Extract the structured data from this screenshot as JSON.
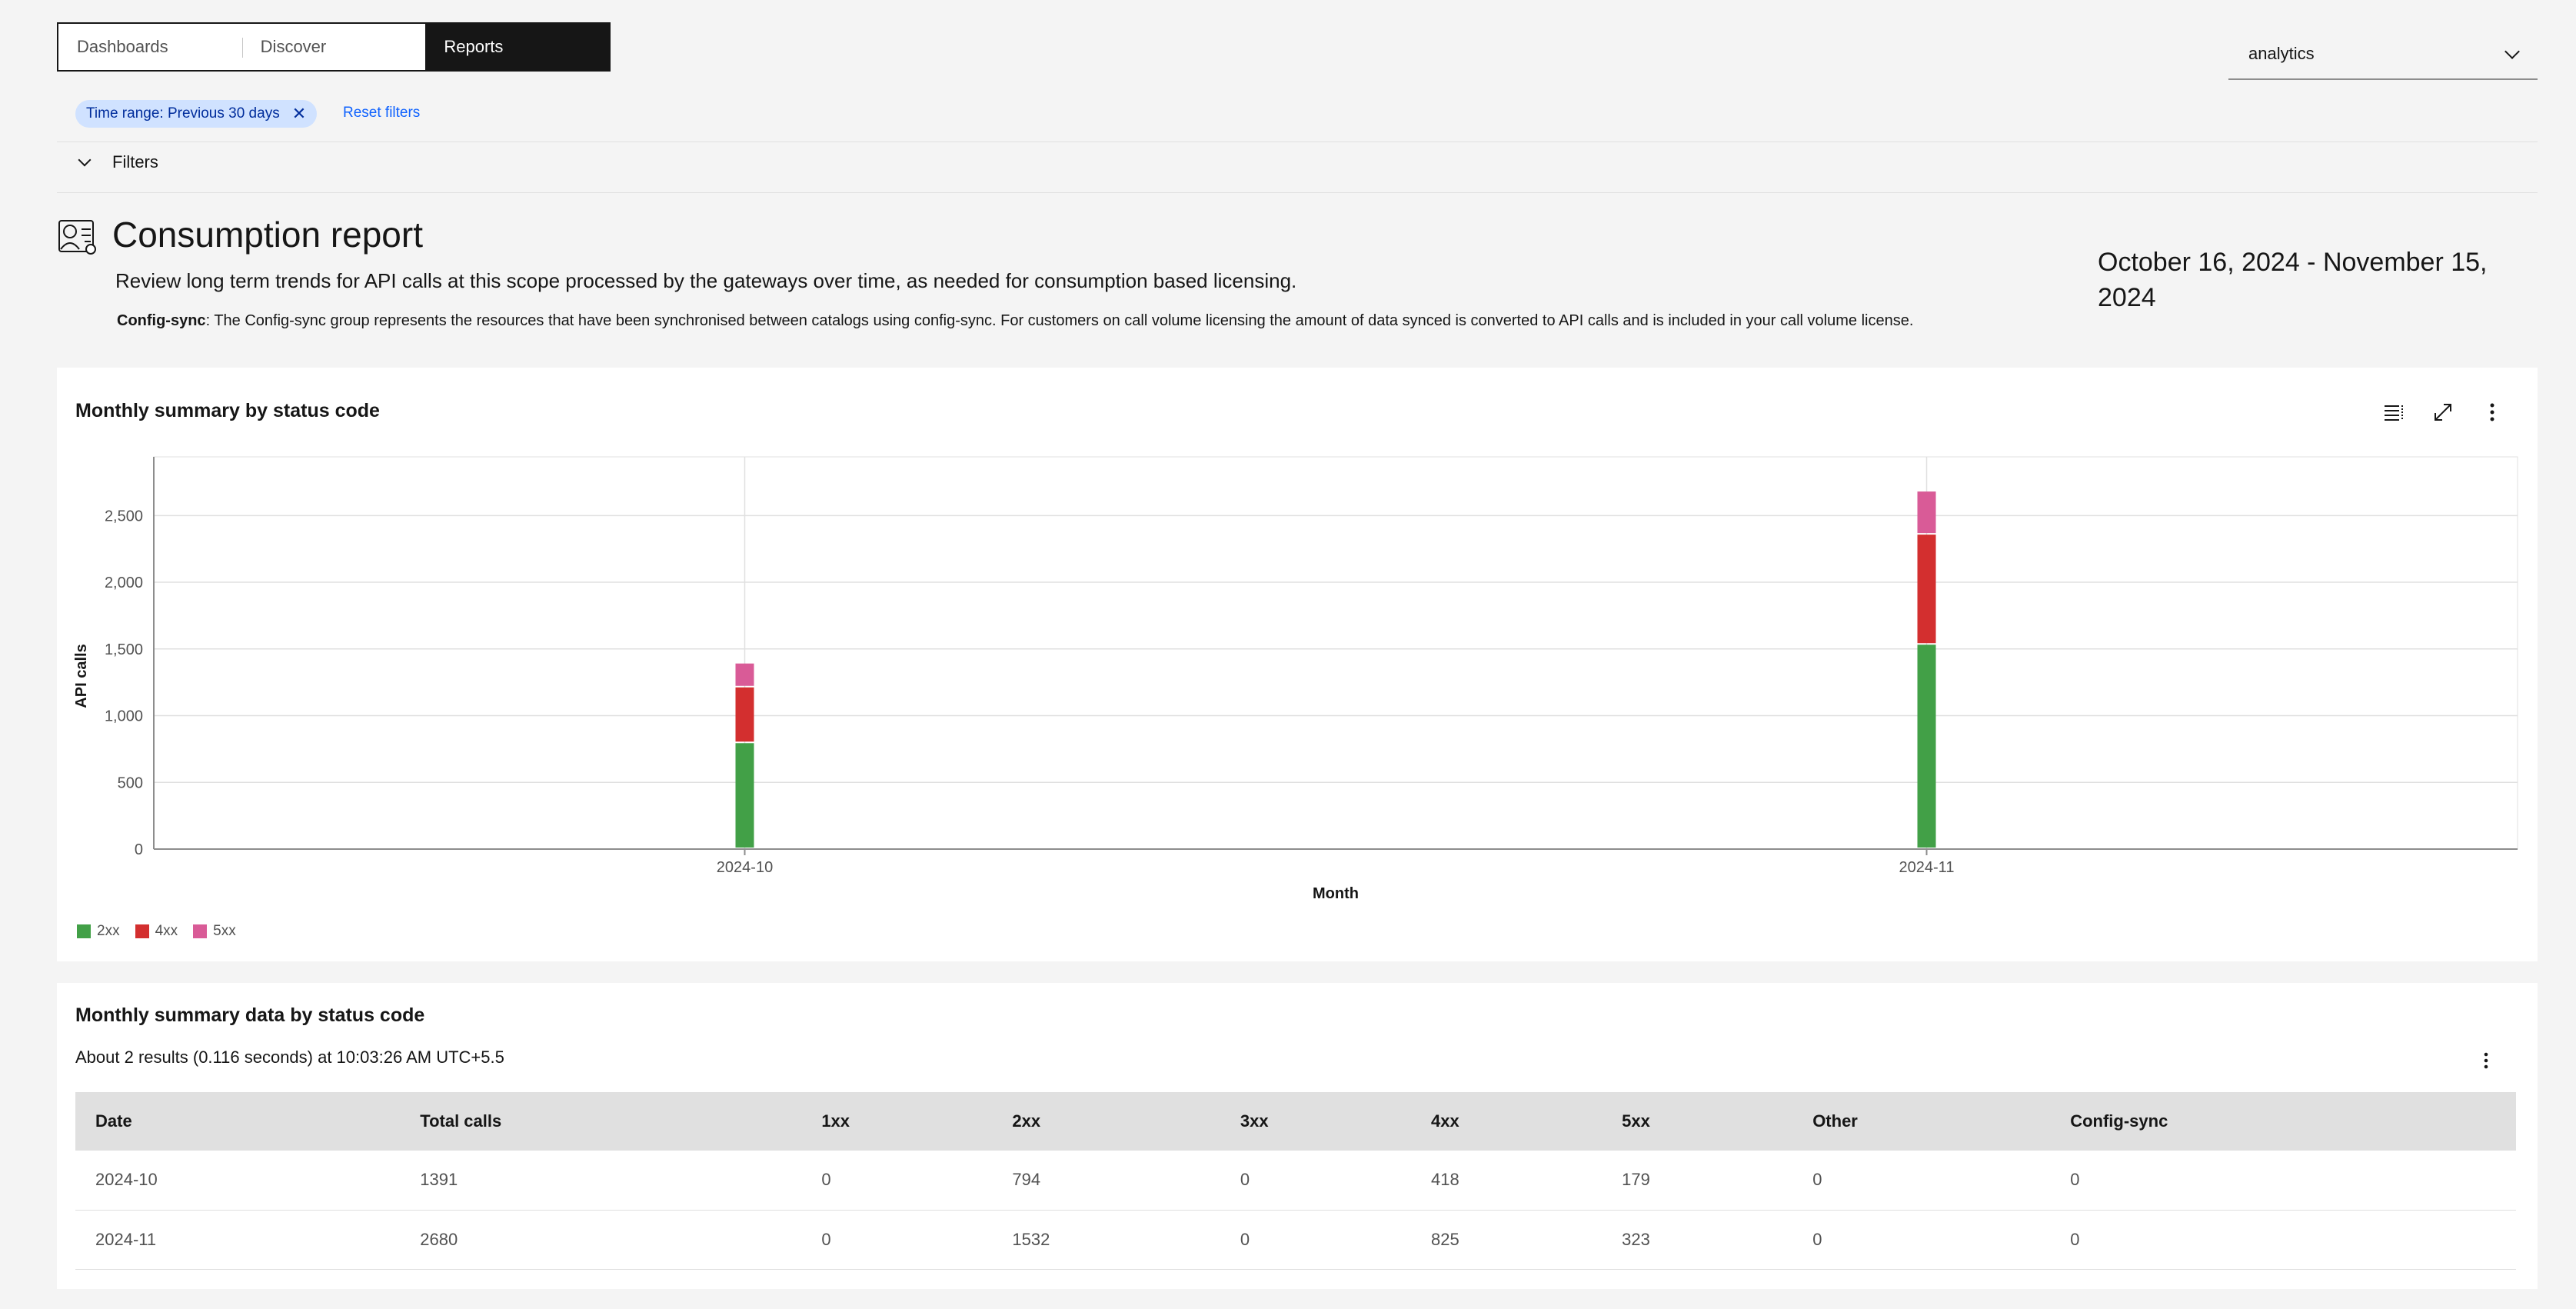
{
  "tabs": [
    {
      "label": "Dashboards"
    },
    {
      "label": "Discover"
    },
    {
      "label": "Reports"
    }
  ],
  "scope_select": {
    "value": "analytics"
  },
  "filter_tag": {
    "label": "Time range: Previous 30 days"
  },
  "reset_filters": "Reset filters",
  "filters_label": "Filters",
  "header": {
    "title": "Consumption report",
    "description": "Review long term trends for API calls at this scope processed by the gateways over time, as needed for consumption based licensing.",
    "config_label": "Config-sync",
    "config_text": ": The Config-sync group represents the resources that have been synchronised between catalogs using config-sync. For customers on call volume licensing the amount of data synced is converted to API calls and is included in your call volume license.",
    "date_range": "October 16, 2024 - November 15, 2024"
  },
  "chart_card": {
    "title": "Monthly summary by status code"
  },
  "chart_data": {
    "type": "bar",
    "stacked": true,
    "categories": [
      "2024-10",
      "2024-11"
    ],
    "series": [
      {
        "name": "2xx",
        "values": [
          794,
          1532
        ],
        "color": "#42a047"
      },
      {
        "name": "4xx",
        "values": [
          418,
          825
        ],
        "color": "#d32f2f"
      },
      {
        "name": "5xx",
        "values": [
          179,
          323
        ],
        "color": "#d95b97"
      }
    ],
    "xlabel": "Month",
    "ylabel": "API calls",
    "ylim": [
      0,
      2940
    ],
    "yticks": [
      0,
      500,
      1000,
      1500,
      2000,
      2500
    ],
    "ytick_labels": [
      "0",
      "500",
      "1,000",
      "1,500",
      "2,000",
      "2,500"
    ],
    "grid": true,
    "legend": "bottom-left"
  },
  "table_card": {
    "title": "Monthly summary data by status code",
    "meta": "About 2 results (0.116 seconds) at 10:03:26 AM UTC+5.5",
    "columns": [
      "Date",
      "Total calls",
      "1xx",
      "2xx",
      "3xx",
      "4xx",
      "5xx",
      "Other",
      "Config-sync"
    ],
    "rows": [
      [
        "2024-10",
        "1391",
        "0",
        "794",
        "0",
        "418",
        "179",
        "0",
        "0"
      ],
      [
        "2024-11",
        "2680",
        "0",
        "1532",
        "0",
        "825",
        "323",
        "0",
        "0"
      ]
    ]
  }
}
